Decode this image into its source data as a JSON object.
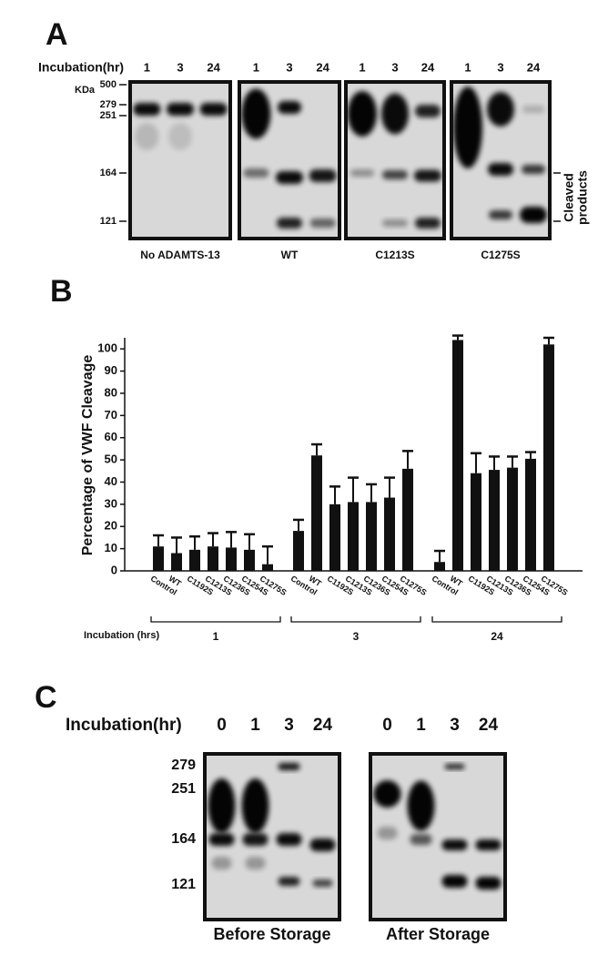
{
  "panel_a": {
    "label": "A",
    "incubation_label": "Incubation(hr)",
    "kda_label": "KDa",
    "markers": [
      "500",
      "279",
      "251",
      "164",
      "121"
    ],
    "blots": [
      {
        "name": "No ADAMTS-13",
        "times": [
          "1",
          "3",
          "24"
        ]
      },
      {
        "name": "WT",
        "times": [
          "1",
          "3",
          "24"
        ]
      },
      {
        "name": "C1213S",
        "times": [
          "1",
          "3",
          "24"
        ]
      },
      {
        "name": "C1275S",
        "times": [
          "1",
          "3",
          "24"
        ]
      }
    ],
    "cleaved_label": [
      "Cleaved",
      "products"
    ]
  },
  "chart_data": {
    "type": "bar",
    "panel_label": "B",
    "ylabel": "Percentage of VWF Cleavage",
    "xlabel": "Incubation (hrs)",
    "categories": [
      "Control",
      "WT",
      "C1192S",
      "C1213S",
      "C1236S",
      "C1254S",
      "C1275S"
    ],
    "groups": [
      {
        "name": "1",
        "values": [
          11,
          8,
          9.5,
          11,
          10.5,
          9.5,
          3
        ],
        "errors": [
          5,
          7,
          6,
          6,
          7,
          7,
          8
        ]
      },
      {
        "name": "3",
        "values": [
          18,
          52,
          30,
          31,
          31,
          33,
          46
        ],
        "errors": [
          5,
          5,
          8,
          11,
          8,
          9,
          8
        ]
      },
      {
        "name": "24",
        "values": [
          4,
          104,
          44,
          45.5,
          46.5,
          50.5,
          102
        ],
        "errors": [
          5,
          2,
          9,
          6,
          5,
          3,
          3
        ]
      }
    ],
    "color": "#111111",
    "ylim": [
      0,
      105
    ],
    "yticks": [
      0,
      10,
      20,
      30,
      40,
      50,
      60,
      70,
      80,
      90,
      100
    ]
  },
  "panel_c": {
    "label": "C",
    "incubation_label": "Incubation(hr)",
    "markers": [
      "279",
      "251",
      "164",
      "121"
    ],
    "blots": [
      {
        "name": "Before Storage",
        "times": [
          "0",
          "1",
          "3",
          "24"
        ]
      },
      {
        "name": "After Storage",
        "times": [
          "0",
          "1",
          "3",
          "24"
        ]
      }
    ]
  }
}
